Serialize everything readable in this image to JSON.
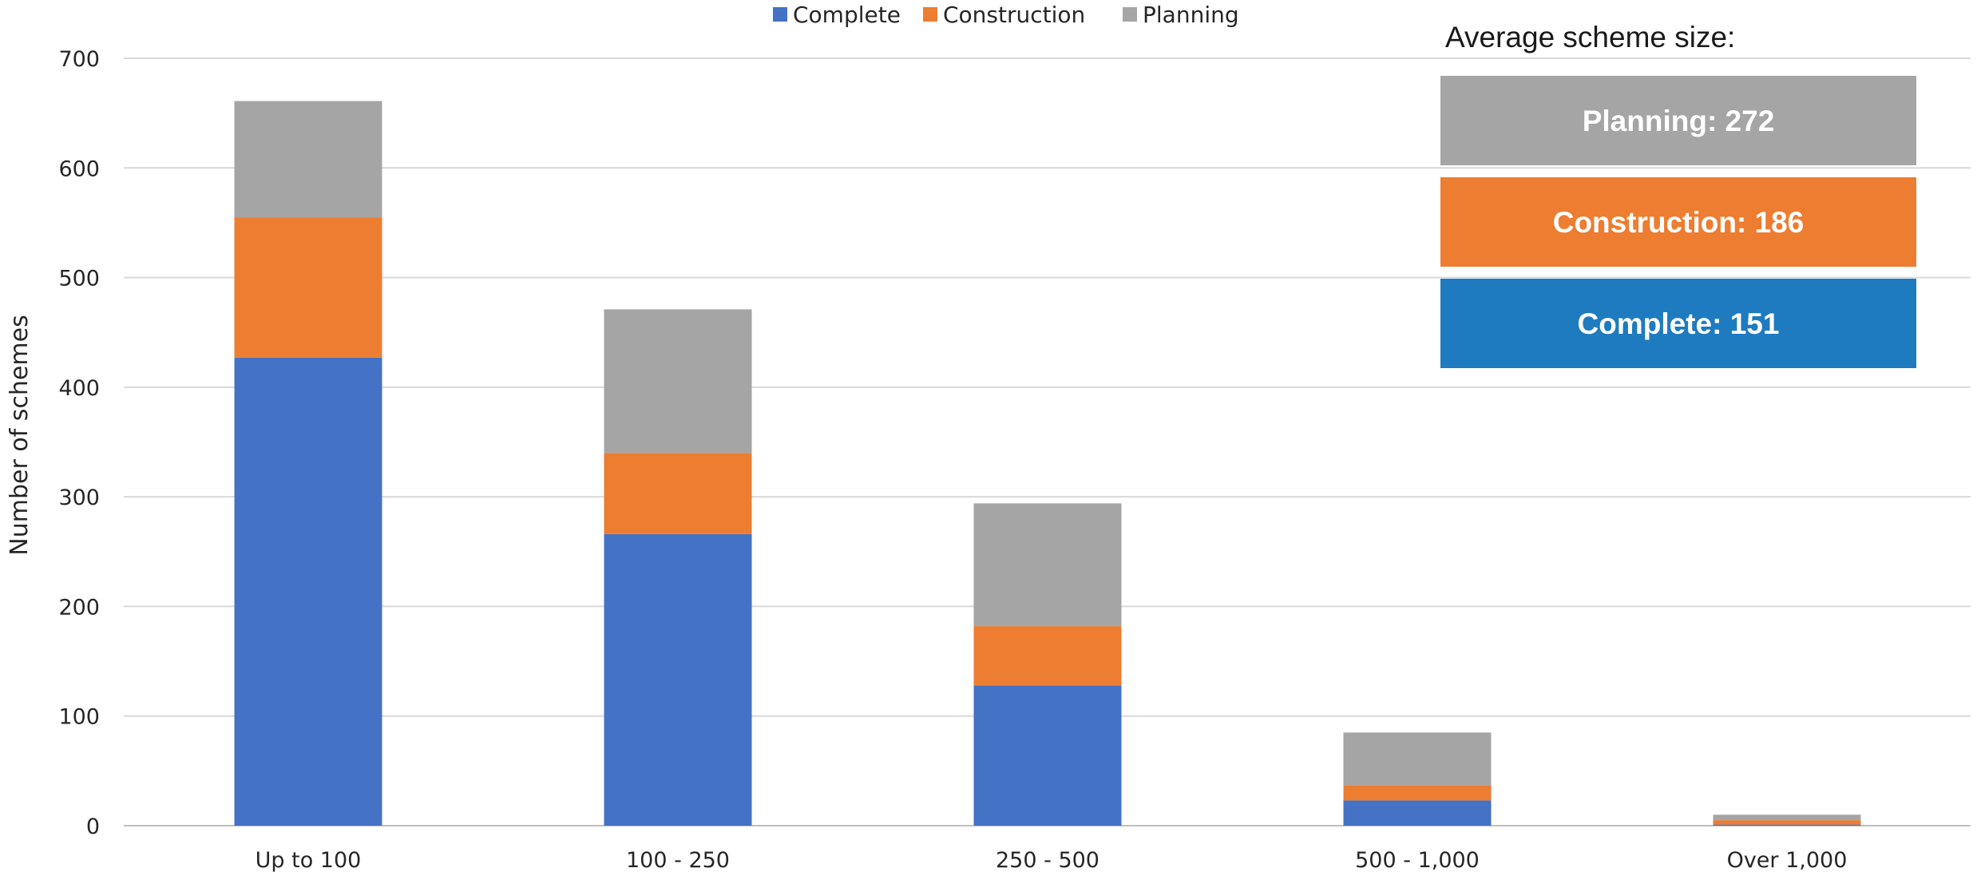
{
  "chart_data": {
    "type": "bar",
    "stacked": true,
    "categories": [
      "Up to 100",
      "100 - 250",
      "250 - 500",
      "500 - 1,000",
      "Over 1,000"
    ],
    "series": [
      {
        "name": "Complete",
        "color": "#4472C4",
        "values": [
          427,
          266,
          128,
          23,
          1
        ]
      },
      {
        "name": "Construction",
        "color": "#ED7D31",
        "values": [
          128,
          74,
          54,
          14,
          4
        ]
      },
      {
        "name": "Planning",
        "color": "#A5A5A5",
        "values": [
          106,
          131,
          112,
          48,
          5
        ]
      }
    ],
    "xlabel": "",
    "ylabel": "Number of schemes",
    "ylim": [
      0,
      700
    ],
    "yticks": [
      0,
      100,
      200,
      300,
      400,
      500,
      600,
      700
    ],
    "grid": true,
    "legend_position": "top-center",
    "annotation": {
      "title": "Average scheme size:",
      "items": [
        {
          "text": "Planning: 272",
          "color": "#A5A5A5"
        },
        {
          "text": "Construction: 186",
          "color": "#ED7D31"
        },
        {
          "text": "Complete: 151",
          "color": "#1F7BBF"
        }
      ]
    }
  }
}
